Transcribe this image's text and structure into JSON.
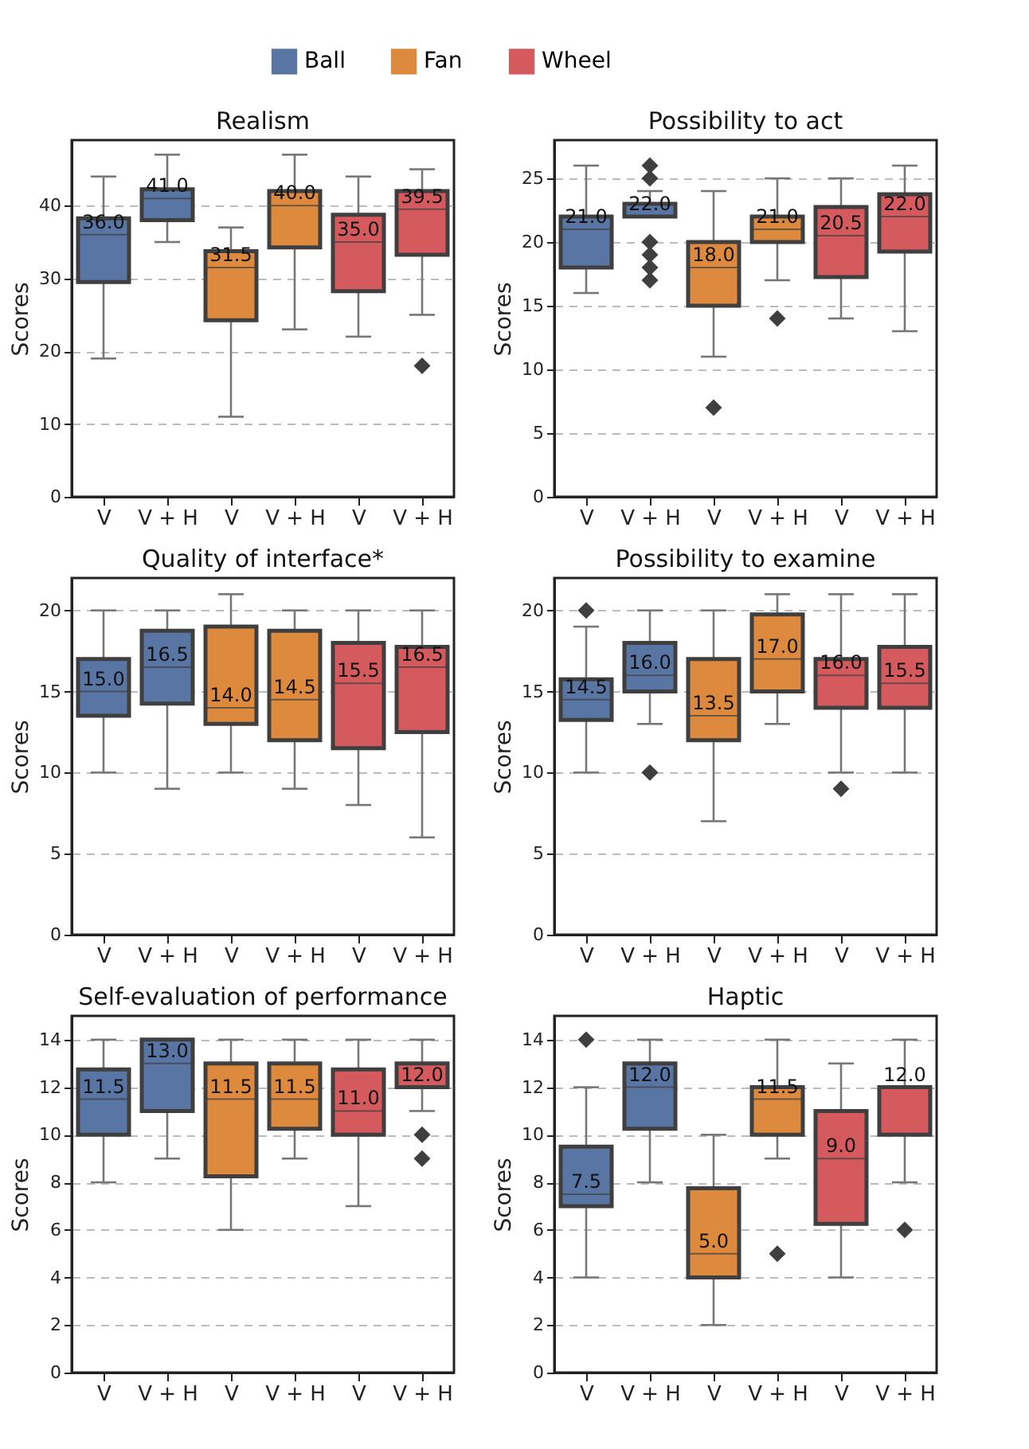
{
  "chart_data": [
    {
      "type": "box",
      "title": "Realism",
      "ylabel": "Scores",
      "categories": [
        "V",
        "V + H",
        "V",
        "V + H",
        "V",
        "V + H"
      ],
      "ylim": [
        0,
        49
      ],
      "yticks": [
        0,
        10,
        20,
        30,
        40
      ],
      "grid": "y",
      "legend": "top",
      "series": [
        {
          "name": "Ball",
          "color": "#5875a4",
          "value_labels": [
            "36.0",
            "41.0",
            null,
            null,
            null,
            null
          ],
          "boxes": [
            {
              "low": 19,
              "q1": 29.5,
              "median": 36.0,
              "q3": 38.25,
              "high": 44
            },
            {
              "low": 35,
              "q1": 38,
              "median": 41.0,
              "q3": 42.25,
              "high": 47
            },
            null,
            null,
            null,
            null
          ]
        },
        {
          "name": "Fan",
          "color": "#dd8a3e",
          "value_labels": [
            null,
            null,
            "31.5",
            "40.0",
            null,
            null
          ],
          "boxes": [
            null,
            null,
            {
              "low": 11,
              "q1": 24.25,
              "median": 31.5,
              "q3": 33.75,
              "high": 37
            },
            {
              "low": 23,
              "q1": 34.25,
              "median": 40.0,
              "q3": 42,
              "high": 47
            },
            null,
            null
          ]
        },
        {
          "name": "Wheel",
          "color": "#d45a5d",
          "value_labels": [
            null,
            null,
            null,
            null,
            "35.0",
            "39.5"
          ],
          "boxes": [
            null,
            null,
            null,
            null,
            {
              "low": 22,
              "q1": 28.25,
              "median": 35.0,
              "q3": 38.75,
              "high": 44
            },
            {
              "low": 25,
              "q1": 33.25,
              "median": 39.5,
              "q3": 42,
              "high": 45,
              "outliers": [
                18
              ]
            }
          ]
        }
      ]
    },
    {
      "type": "box",
      "title": "Possibility to act",
      "ylabel": "Scores",
      "categories": [
        "V",
        "V + H",
        "V",
        "V + H",
        "V",
        "V + H"
      ],
      "ylim": [
        0,
        28
      ],
      "yticks": [
        0,
        5,
        10,
        15,
        20,
        25
      ],
      "grid": "y",
      "series": [
        {
          "color": "#5875a4",
          "value_labels": [
            "21.0",
            "22.0",
            null,
            null,
            null,
            null
          ],
          "boxes": [
            {
              "low": 16,
              "q1": 18,
              "median": 21.0,
              "q3": 22,
              "high": 26
            },
            {
              "low": 22,
              "q1": 22,
              "median": 22.0,
              "q3": 23,
              "high": 24,
              "outliers": [
                26,
                25,
                20,
                19,
                18,
                17
              ]
            },
            null,
            null,
            null,
            null
          ]
        },
        {
          "color": "#dd8a3e",
          "value_labels": [
            null,
            null,
            "18.0",
            "21.0",
            null,
            null
          ],
          "boxes": [
            null,
            null,
            {
              "low": 11,
              "q1": 15,
              "median": 18.0,
              "q3": 20,
              "high": 24,
              "outliers": [
                7
              ]
            },
            {
              "low": 17,
              "q1": 20,
              "median": 21.0,
              "q3": 22,
              "high": 25,
              "outliers": [
                14
              ]
            },
            null,
            null
          ]
        },
        {
          "color": "#d45a5d",
          "value_labels": [
            null,
            null,
            null,
            null,
            "20.5",
            "22.0"
          ],
          "boxes": [
            null,
            null,
            null,
            null,
            {
              "low": 14,
              "q1": 17.25,
              "median": 20.5,
              "q3": 22.75,
              "high": 25
            },
            {
              "low": 13,
              "q1": 19.25,
              "median": 22.0,
              "q3": 23.75,
              "high": 26
            }
          ]
        }
      ]
    },
    {
      "type": "box",
      "title": "Quality of interface*",
      "ylabel": "Scores",
      "categories": [
        "V",
        "V + H",
        "V",
        "V + H",
        "V",
        "V + H"
      ],
      "ylim": [
        0,
        22
      ],
      "yticks": [
        0,
        5,
        10,
        15,
        20
      ],
      "grid": "y",
      "series": [
        {
          "color": "#5875a4",
          "value_labels": [
            "15.0",
            "16.5",
            null,
            null,
            null,
            null
          ],
          "boxes": [
            {
              "low": 10,
              "q1": 13.5,
              "median": 15.0,
              "q3": 17,
              "high": 20
            },
            {
              "low": 9,
              "q1": 14.25,
              "median": 16.5,
              "q3": 18.75,
              "high": 20
            },
            null,
            null,
            null,
            null
          ]
        },
        {
          "color": "#dd8a3e",
          "value_labels": [
            null,
            null,
            "14.0",
            "14.5",
            null,
            null
          ],
          "boxes": [
            null,
            null,
            {
              "low": 10,
              "q1": 13,
              "median": 14.0,
              "q3": 19,
              "high": 21
            },
            {
              "low": 9,
              "q1": 12,
              "median": 14.5,
              "q3": 18.75,
              "high": 20
            },
            null,
            null
          ]
        },
        {
          "color": "#d45a5d",
          "value_labels": [
            null,
            null,
            null,
            null,
            "15.5",
            "16.5"
          ],
          "boxes": [
            null,
            null,
            null,
            null,
            {
              "low": 8,
              "q1": 11.5,
              "median": 15.5,
              "q3": 18,
              "high": 20
            },
            {
              "low": 6,
              "q1": 12.5,
              "median": 16.5,
              "q3": 17.75,
              "high": 20
            }
          ]
        }
      ]
    },
    {
      "type": "box",
      "title": "Possibility to examine",
      "ylabel": "Scores",
      "categories": [
        "V",
        "V + H",
        "V",
        "V + H",
        "V",
        "V + H"
      ],
      "ylim": [
        0,
        22
      ],
      "yticks": [
        0,
        5,
        10,
        15,
        20
      ],
      "grid": "y",
      "series": [
        {
          "color": "#5875a4",
          "value_labels": [
            "14.5",
            "16.0",
            null,
            null,
            null,
            null
          ],
          "boxes": [
            {
              "low": 10,
              "q1": 13.25,
              "median": 14.5,
              "q3": 15.75,
              "high": 19,
              "outliers": [
                20
              ]
            },
            {
              "low": 13,
              "q1": 15,
              "median": 16.0,
              "q3": 18,
              "high": 20,
              "outliers": [
                10
              ]
            },
            null,
            null,
            null,
            null
          ]
        },
        {
          "color": "#dd8a3e",
          "value_labels": [
            null,
            null,
            "13.5",
            "17.0",
            null,
            null
          ],
          "boxes": [
            null,
            null,
            {
              "low": 7,
              "q1": 12,
              "median": 13.5,
              "q3": 17,
              "high": 20
            },
            {
              "low": 13,
              "q1": 15,
              "median": 17.0,
              "q3": 19.75,
              "high": 21
            },
            null,
            null
          ]
        },
        {
          "color": "#d45a5d",
          "value_labels": [
            null,
            null,
            null,
            null,
            "16.0",
            "15.5"
          ],
          "boxes": [
            null,
            null,
            null,
            null,
            {
              "low": 10,
              "q1": 14,
              "median": 16.0,
              "q3": 17,
              "high": 21,
              "outliers": [
                9
              ]
            },
            {
              "low": 10,
              "q1": 14,
              "median": 15.5,
              "q3": 17.75,
              "high": 21
            }
          ]
        }
      ]
    },
    {
      "type": "box",
      "title": "Self-evaluation of performance",
      "ylabel": "Scores",
      "categories": [
        "V",
        "V + H",
        "V",
        "V + H",
        "V",
        "V + H"
      ],
      "ylim": [
        0,
        15
      ],
      "yticks": [
        0,
        2,
        4,
        6,
        8,
        10,
        12,
        14
      ],
      "grid": "y",
      "series": [
        {
          "color": "#5875a4",
          "value_labels": [
            "11.5",
            "13.0",
            null,
            null,
            null,
            null
          ],
          "boxes": [
            {
              "low": 8,
              "q1": 10,
              "median": 11.5,
              "q3": 12.75,
              "high": 14
            },
            {
              "low": 9,
              "q1": 11,
              "median": 13.0,
              "q3": 14,
              "high": 14
            },
            null,
            null,
            null,
            null
          ]
        },
        {
          "color": "#dd8a3e",
          "value_labels": [
            null,
            null,
            "11.5",
            "11.5",
            null,
            null
          ],
          "boxes": [
            null,
            null,
            {
              "low": 6,
              "q1": 8.25,
              "median": 11.5,
              "q3": 13,
              "high": 14
            },
            {
              "low": 9,
              "q1": 10.25,
              "median": 11.5,
              "q3": 13,
              "high": 14
            },
            null,
            null
          ]
        },
        {
          "color": "#d45a5d",
          "value_labels": [
            null,
            null,
            null,
            null,
            "11.0",
            "12.0"
          ],
          "boxes": [
            null,
            null,
            null,
            null,
            {
              "low": 7,
              "q1": 10,
              "median": 11.0,
              "q3": 12.75,
              "high": 14
            },
            {
              "low": 11,
              "q1": 12,
              "median": 12.0,
              "q3": 13,
              "high": 14,
              "outliers": [
                10,
                9
              ]
            }
          ]
        }
      ]
    },
    {
      "type": "box",
      "title": "Haptic",
      "ylabel": "Scores",
      "categories": [
        "V",
        "V + H",
        "V",
        "V + H",
        "V",
        "V + H"
      ],
      "ylim": [
        0,
        15
      ],
      "yticks": [
        0,
        2,
        4,
        6,
        8,
        10,
        12,
        14
      ],
      "grid": "y",
      "series": [
        {
          "color": "#5875a4",
          "value_labels": [
            "7.5",
            "12.0",
            null,
            null,
            null,
            null
          ],
          "boxes": [
            {
              "low": 4,
              "q1": 7,
              "median": 7.5,
              "q3": 9.5,
              "high": 12,
              "outliers": [
                14
              ]
            },
            {
              "low": 8,
              "q1": 10.25,
              "median": 12.0,
              "q3": 13,
              "high": 14
            },
            null,
            null,
            null,
            null
          ]
        },
        {
          "color": "#dd8a3e",
          "value_labels": [
            null,
            null,
            "5.0",
            "11.5",
            null,
            null
          ],
          "boxes": [
            null,
            null,
            {
              "low": 2,
              "q1": 4,
              "median": 5.0,
              "q3": 7.75,
              "high": 10
            },
            {
              "low": 9,
              "q1": 10,
              "median": 11.5,
              "q3": 12,
              "high": 14,
              "outliers": [
                5
              ]
            },
            null,
            null
          ]
        },
        {
          "color": "#d45a5d",
          "value_labels": [
            null,
            null,
            null,
            null,
            "9.0",
            "12.0"
          ],
          "boxes": [
            null,
            null,
            null,
            null,
            {
              "low": 4,
              "q1": 6.25,
              "median": 9.0,
              "q3": 11,
              "high": 13
            },
            {
              "low": 8,
              "q1": 10,
              "median": 12.0,
              "q3": 12,
              "high": 14,
              "outliers": [
                6
              ]
            }
          ]
        }
      ]
    }
  ]
}
